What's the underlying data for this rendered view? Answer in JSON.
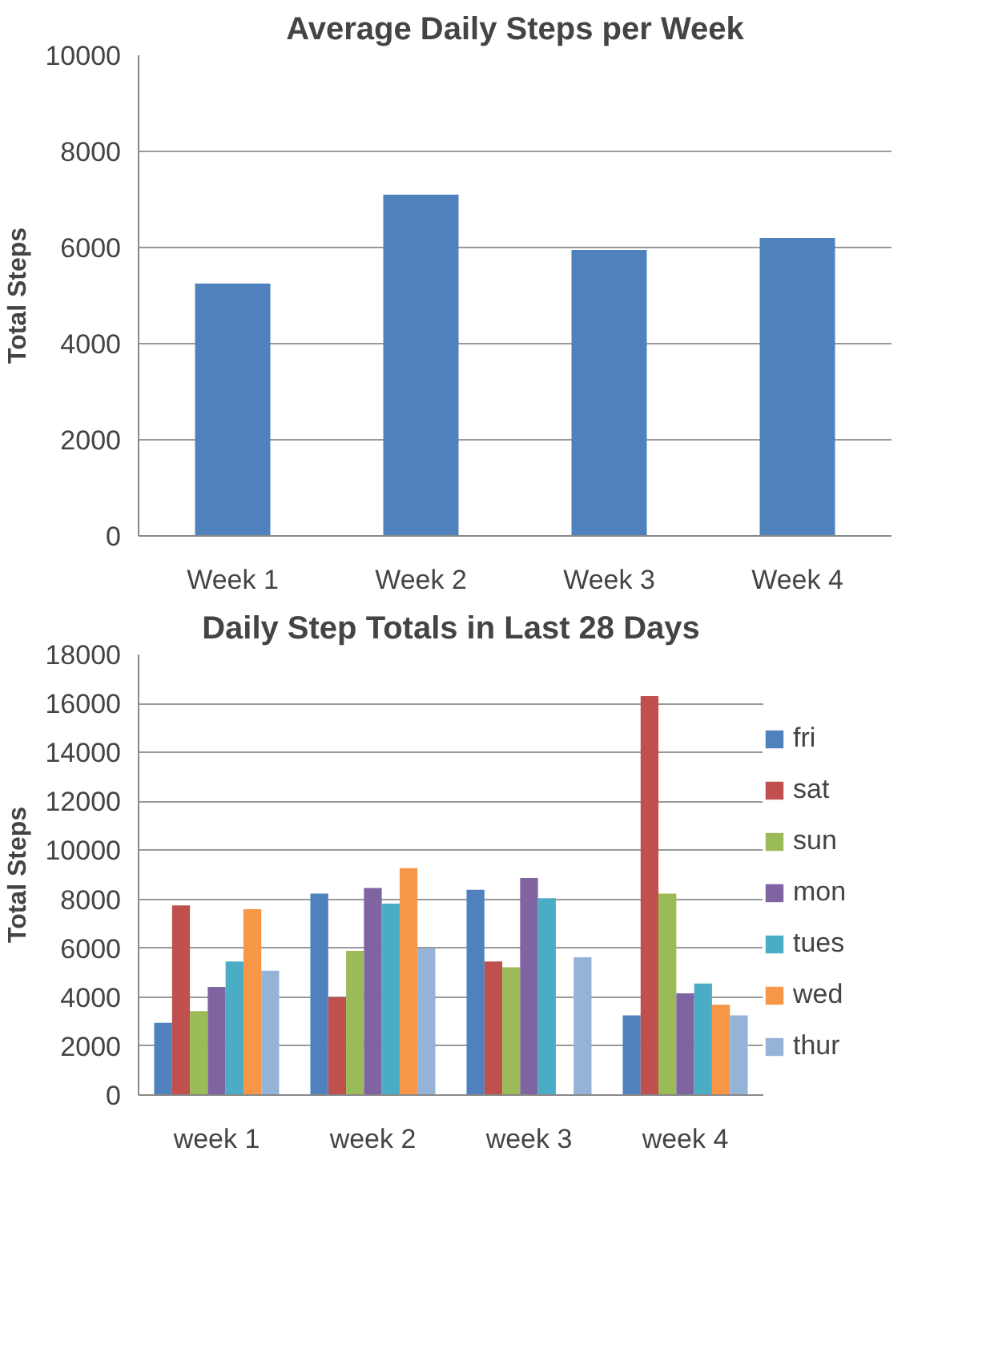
{
  "chart_data": [
    {
      "type": "bar",
      "title": "Average Daily Steps per Week",
      "ylabel": "Total Steps",
      "categories": [
        "Week 1",
        "Week 2",
        "Week 3",
        "Week 4"
      ],
      "series": [
        {
          "color": "#4f81bd",
          "values": [
            5250,
            7100,
            5950,
            6200
          ]
        }
      ],
      "ylim": [
        0,
        10000
      ],
      "yticks": [
        0,
        2000,
        4000,
        6000,
        8000,
        10000
      ],
      "grid": "y",
      "legend": false
    },
    {
      "type": "bar",
      "title": "Daily Step Totals in Last 28 Days",
      "ylabel": "Total Steps",
      "categories": [
        "week 1",
        "week 2",
        "week 3",
        "week 4"
      ],
      "series": [
        {
          "name": "fri",
          "color": "#4f81bd",
          "values": [
            2950,
            8230,
            8390,
            3260
          ]
        },
        {
          "name": "sat",
          "color": "#c0504d",
          "values": [
            7750,
            4000,
            5460,
            16300
          ]
        },
        {
          "name": "sun",
          "color": "#9bbb59",
          "values": [
            3430,
            5890,
            5220,
            8230
          ]
        },
        {
          "name": "mon",
          "color": "#8064a2",
          "values": [
            4420,
            8460,
            8870,
            4160
          ]
        },
        {
          "name": "tues",
          "color": "#4bacc6",
          "values": [
            5460,
            7820,
            8040,
            4560
          ]
        },
        {
          "name": "wed",
          "color": "#f79646",
          "values": [
            7590,
            9270,
            null,
            3690
          ]
        },
        {
          "name": "thur",
          "color": "#95b3d7",
          "values": [
            5080,
            6000,
            5630,
            3260
          ]
        }
      ],
      "ylim": [
        0,
        18000
      ],
      "yticks": [
        0,
        2000,
        4000,
        6000,
        8000,
        10000,
        12000,
        14000,
        16000,
        18000
      ],
      "grid": "y",
      "legend": "right"
    }
  ]
}
